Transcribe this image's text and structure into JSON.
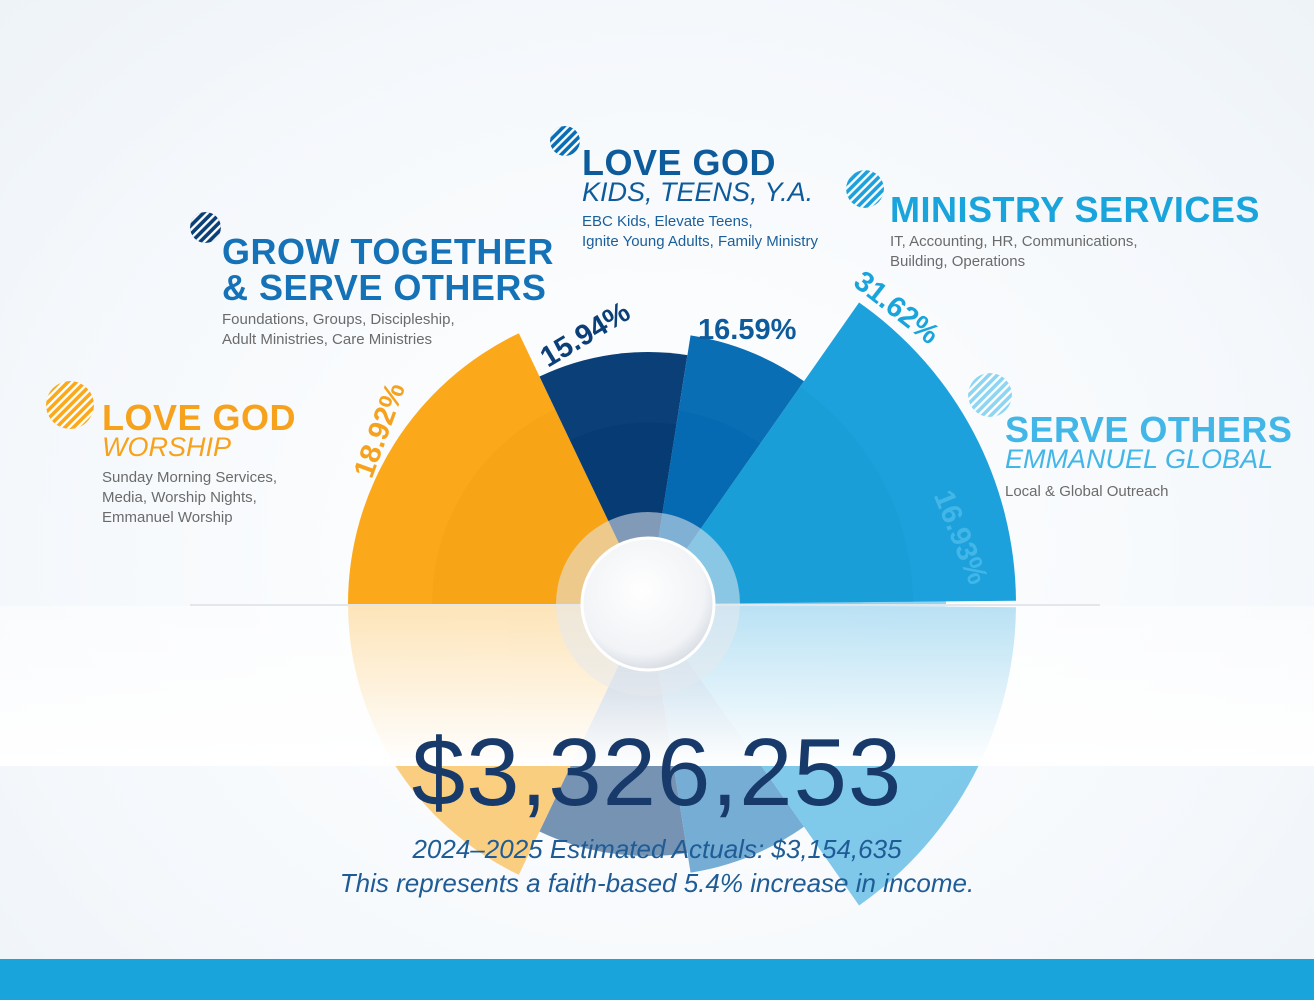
{
  "colors": {
    "worship": "#fba91a",
    "grow": "#0b3f78",
    "kids": "#0a6eb5",
    "ministry": "#1da1dc",
    "serve": "#8ed5f4",
    "grow_text": "#1672b6",
    "kids_text": "#0e5b9c",
    "ministry_text": "#1aa4dc",
    "serve_text": "#43b6e8",
    "worship_text": "#f7a21c"
  },
  "chart_data": {
    "type": "pie",
    "center_value": "$3,326,253",
    "slices": [
      {
        "key": "worship",
        "title": "LOVE GOD",
        "subtitle": "WORSHIP",
        "value": 18.92,
        "label": "18.92%",
        "description": "Sunday Morning Services,\nMedia, Worship Nights,\nEmmanuel Worship"
      },
      {
        "key": "grow",
        "title": "GROW TOGETHER\n& SERVE OTHERS",
        "subtitle": "",
        "value": 15.94,
        "label": "15.94%",
        "description": "Foundations, Groups, Discipleship,\nAdult Ministries, Care Ministries"
      },
      {
        "key": "kids",
        "title": "LOVE GOD",
        "subtitle": "KIDS, TEENS, Y.A.",
        "value": 16.59,
        "label": "16.59%",
        "description": "EBC Kids, Elevate Teens,\nIgnite Young Adults, Family Ministry"
      },
      {
        "key": "ministry",
        "title": "MINISTRY SERVICES",
        "subtitle": "",
        "value": 31.62,
        "label": "31.62%",
        "description": "IT, Accounting, HR, Communications,\nBuilding, Operations"
      },
      {
        "key": "serve",
        "title": "SERVE OTHERS",
        "subtitle": "EMMANUEL GLOBAL",
        "value": 16.93,
        "label": "16.93%",
        "description": "Local & Global Outreach"
      }
    ]
  },
  "summary": {
    "total": "$3,326,253",
    "line1": "2024–2025 Estimated Actuals: $3,154,635",
    "line2": "This represents a faith-based 5.4% increase in income."
  }
}
